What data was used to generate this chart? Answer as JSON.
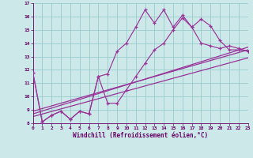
{
  "bg_color": "#cce8e8",
  "grid_color": "#99cccc",
  "line_color": "#993399",
  "xlabel": "Windchill (Refroidissement éolien,°C)",
  "xlim_min": 0,
  "xlim_max": 23,
  "ylim_min": 8,
  "ylim_max": 17,
  "xticks": [
    0,
    1,
    2,
    3,
    4,
    5,
    6,
    7,
    8,
    9,
    10,
    11,
    12,
    13,
    14,
    15,
    16,
    17,
    18,
    19,
    20,
    21,
    22,
    23
  ],
  "yticks": [
    8,
    9,
    10,
    11,
    12,
    13,
    14,
    15,
    16,
    17
  ],
  "curve1_x": [
    0,
    1,
    2,
    3,
    4,
    5,
    6,
    7,
    8,
    9,
    10,
    11,
    12,
    13,
    14,
    15,
    16,
    17,
    18,
    19,
    20,
    21,
    22,
    23
  ],
  "curve1_y": [
    11.8,
    8.1,
    8.6,
    8.9,
    8.3,
    8.9,
    8.7,
    11.5,
    11.7,
    13.4,
    14.0,
    15.2,
    16.5,
    15.5,
    16.5,
    15.2,
    16.1,
    15.2,
    14.0,
    13.8,
    13.6,
    13.8,
    13.6,
    13.4
  ],
  "curve2_x": [
    0,
    1,
    2,
    3,
    4,
    5,
    6,
    7,
    8,
    9,
    10,
    11,
    12,
    13,
    14,
    15,
    16,
    17,
    18,
    19,
    20,
    21,
    22,
    23
  ],
  "curve2_y": [
    11.8,
    8.1,
    8.6,
    8.9,
    8.3,
    8.9,
    8.7,
    11.5,
    9.5,
    9.5,
    10.5,
    11.5,
    12.5,
    13.5,
    14.0,
    15.0,
    15.9,
    15.2,
    15.8,
    15.3,
    14.2,
    13.5,
    13.5,
    13.4
  ],
  "ref_line1_x0": 0,
  "ref_line1_y0": 8.7,
  "ref_line1_x1": 23,
  "ref_line1_y1": 13.7,
  "ref_line2_x0": 0,
  "ref_line2_y0": 8.9,
  "ref_line2_x1": 23,
  "ref_line2_y1": 13.5,
  "ref_line3_x0": 0,
  "ref_line3_y0": 8.5,
  "ref_line3_x1": 23,
  "ref_line3_y1": 12.9
}
